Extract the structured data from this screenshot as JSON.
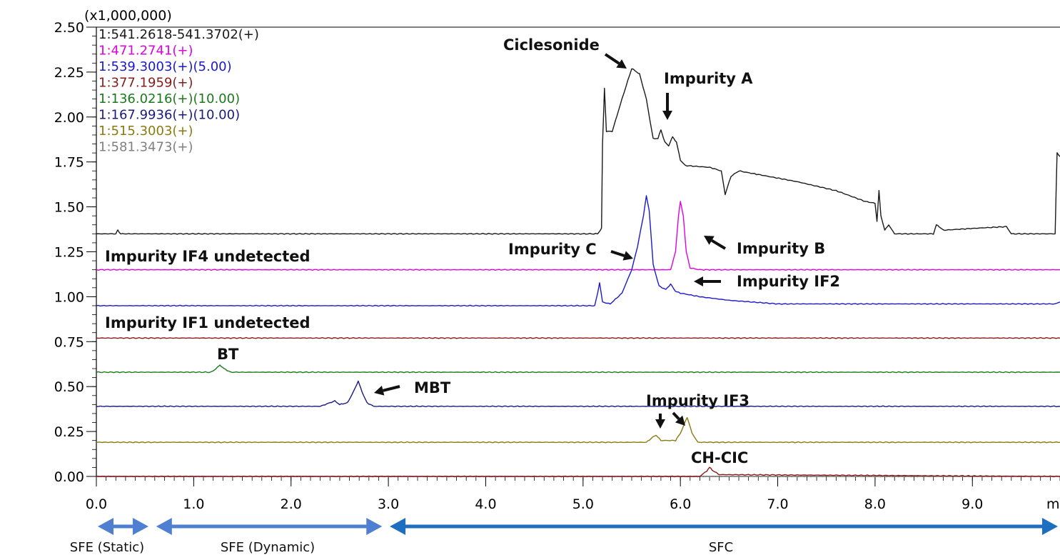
{
  "chart_data": {
    "type": "line",
    "title": "",
    "xlabel": "",
    "ylabel": "",
    "y_multiplier_label": "(x1,000,000)",
    "x_unit_label": "m",
    "xlim": [
      0.0,
      9.9
    ],
    "ylim": [
      0.0,
      2.5
    ],
    "x_ticks": [
      "0.0",
      "1.0",
      "2.0",
      "3.0",
      "4.0",
      "5.0",
      "6.0",
      "7.0",
      "8.0",
      "9.0"
    ],
    "y_ticks": [
      "0.00",
      "0.25",
      "0.50",
      "0.75",
      "1.00",
      "1.25",
      "1.50",
      "1.75",
      "2.00",
      "2.25",
      "2.50"
    ],
    "grid": false,
    "legend_position": "top-left",
    "series": [
      {
        "name": "1:541.2618-541.3702(+)",
        "color": "#1a1a1a",
        "baseline": 1.35,
        "points": [
          [
            0,
            1.35
          ],
          [
            0.2,
            1.35
          ],
          [
            0.22,
            1.37
          ],
          [
            0.25,
            1.35
          ],
          [
            5.15,
            1.35
          ],
          [
            5.19,
            1.38
          ],
          [
            5.2,
            1.85
          ],
          [
            5.22,
            2.16
          ],
          [
            5.24,
            1.92
          ],
          [
            5.3,
            1.92
          ],
          [
            5.4,
            2.1
          ],
          [
            5.5,
            2.27
          ],
          [
            5.58,
            2.24
          ],
          [
            5.65,
            2.1
          ],
          [
            5.72,
            1.88
          ],
          [
            5.77,
            1.88
          ],
          [
            5.8,
            1.93
          ],
          [
            5.84,
            1.86
          ],
          [
            5.88,
            1.84
          ],
          [
            5.92,
            1.89
          ],
          [
            5.96,
            1.86
          ],
          [
            6.0,
            1.76
          ],
          [
            6.05,
            1.73
          ],
          [
            6.3,
            1.72
          ],
          [
            6.42,
            1.7
          ],
          [
            6.46,
            1.57
          ],
          [
            6.52,
            1.67
          ],
          [
            6.6,
            1.7
          ],
          [
            6.8,
            1.68
          ],
          [
            7.2,
            1.64
          ],
          [
            7.6,
            1.59
          ],
          [
            7.9,
            1.53
          ],
          [
            8.0,
            1.52
          ],
          [
            8.02,
            1.42
          ],
          [
            8.04,
            1.59
          ],
          [
            8.06,
            1.45
          ],
          [
            8.1,
            1.37
          ],
          [
            8.14,
            1.4
          ],
          [
            8.2,
            1.35
          ],
          [
            8.6,
            1.35
          ],
          [
            8.63,
            1.4
          ],
          [
            8.66,
            1.39
          ],
          [
            8.7,
            1.37
          ],
          [
            9.0,
            1.38
          ],
          [
            9.35,
            1.39
          ],
          [
            9.4,
            1.35
          ],
          [
            9.85,
            1.35
          ],
          [
            9.87,
            1.8
          ],
          [
            9.9,
            1.78
          ]
        ]
      },
      {
        "name": "1:471.2741(+)",
        "color": "#e000e0",
        "baseline": 1.15,
        "points": [
          [
            0,
            1.15
          ],
          [
            5.9,
            1.15
          ],
          [
            5.95,
            1.25
          ],
          [
            5.98,
            1.45
          ],
          [
            6.0,
            1.53
          ],
          [
            6.03,
            1.45
          ],
          [
            6.06,
            1.25
          ],
          [
            6.1,
            1.16
          ],
          [
            6.2,
            1.15
          ],
          [
            9.9,
            1.15
          ]
        ]
      },
      {
        "name": "1:539.3003(+)(5.00)",
        "color": "#1a1acc",
        "baseline": 0.95,
        "points": [
          [
            0,
            0.95
          ],
          [
            5.12,
            0.95
          ],
          [
            5.15,
            1.02
          ],
          [
            5.17,
            1.08
          ],
          [
            5.2,
            0.97
          ],
          [
            5.28,
            0.96
          ],
          [
            5.4,
            1.02
          ],
          [
            5.5,
            1.15
          ],
          [
            5.56,
            1.28
          ],
          [
            5.62,
            1.45
          ],
          [
            5.65,
            1.56
          ],
          [
            5.68,
            1.48
          ],
          [
            5.72,
            1.18
          ],
          [
            5.78,
            1.06
          ],
          [
            5.85,
            1.04
          ],
          [
            5.9,
            1.07
          ],
          [
            5.95,
            1.03
          ],
          [
            6.0,
            1.02
          ],
          [
            6.2,
            1.0
          ],
          [
            6.5,
            0.98
          ],
          [
            7.0,
            0.96
          ],
          [
            9.85,
            0.96
          ],
          [
            9.9,
            0.97
          ]
        ]
      },
      {
        "name": "1:377.1959(+)",
        "color": "#8b1a1a",
        "baseline": 0.77,
        "points": [
          [
            0,
            0.77
          ],
          [
            9.9,
            0.77
          ]
        ]
      },
      {
        "name": "1:136.0216(+)(10.00)",
        "color": "#1a7a1a",
        "baseline": 0.58,
        "points": [
          [
            0,
            0.58
          ],
          [
            1.18,
            0.58
          ],
          [
            1.23,
            0.6
          ],
          [
            1.27,
            0.62
          ],
          [
            1.31,
            0.6
          ],
          [
            1.38,
            0.58
          ],
          [
            9.9,
            0.58
          ]
        ]
      },
      {
        "name": "1:167.9936(+)(10.00)",
        "color": "#1a1a80",
        "baseline": 0.39,
        "points": [
          [
            0,
            0.39
          ],
          [
            2.3,
            0.39
          ],
          [
            2.4,
            0.41
          ],
          [
            2.45,
            0.42
          ],
          [
            2.5,
            0.4
          ],
          [
            2.58,
            0.41
          ],
          [
            2.64,
            0.47
          ],
          [
            2.69,
            0.53
          ],
          [
            2.73,
            0.47
          ],
          [
            2.78,
            0.41
          ],
          [
            2.85,
            0.39
          ],
          [
            9.9,
            0.39
          ]
        ]
      },
      {
        "name": "1:515.3003(+)",
        "color": "#8a7a10",
        "baseline": 0.19,
        "points": [
          [
            0,
            0.19
          ],
          [
            5.65,
            0.19
          ],
          [
            5.72,
            0.22
          ],
          [
            5.75,
            0.23
          ],
          [
            5.8,
            0.2
          ],
          [
            5.95,
            0.2
          ],
          [
            6.0,
            0.24
          ],
          [
            6.07,
            0.33
          ],
          [
            6.12,
            0.24
          ],
          [
            6.18,
            0.19
          ],
          [
            9.9,
            0.19
          ]
        ]
      },
      {
        "name": "1:581.3473(+)",
        "color": "#808080",
        "baseline": 0.0,
        "points": [
          [
            0,
            0.0
          ],
          [
            9.9,
            0.0
          ]
        ]
      },
      {
        "name": "",
        "color": "#8b1a1a",
        "baseline": 0.0,
        "points": [
          [
            0,
            0.0
          ],
          [
            6.2,
            0.0
          ],
          [
            6.27,
            0.03
          ],
          [
            6.3,
            0.05
          ],
          [
            6.34,
            0.03
          ],
          [
            6.4,
            0.01
          ],
          [
            9.9,
            0.0
          ]
        ]
      }
    ],
    "annotations": [
      {
        "text": "Ciclesonide"
      },
      {
        "text": "Impurity A"
      },
      {
        "text": "Impurity B"
      },
      {
        "text": "Impurity C"
      },
      {
        "text": "Impurity IF2"
      },
      {
        "text": "Impurity IF4 undetected"
      },
      {
        "text": "Impurity IF1 undetected"
      },
      {
        "text": "BT"
      },
      {
        "text": "MBT"
      },
      {
        "text": "Impurity IF3"
      },
      {
        "text": "CH-CIC"
      }
    ],
    "phases": [
      {
        "label": "SFE (Static)",
        "start": 0.0,
        "end": 0.55,
        "color": "#4f7fd0"
      },
      {
        "label": "SFE (Dynamic)",
        "start": 0.6,
        "end": 2.95,
        "color": "#4f7fd0"
      },
      {
        "label": "SFC",
        "start": 3.0,
        "end": 9.9,
        "color": "#1f6fc0"
      }
    ]
  }
}
